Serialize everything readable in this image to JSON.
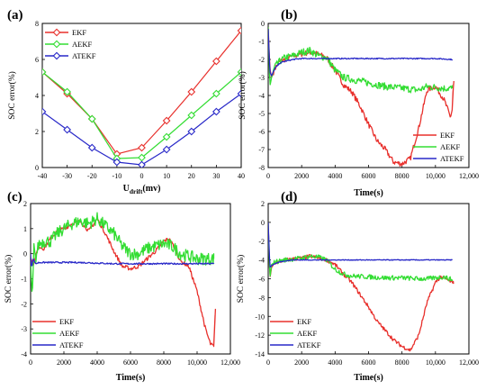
{
  "figure_labels": [
    "(a)",
    "(b)",
    "(c)",
    "(d)"
  ],
  "chart_data": [
    {
      "panel": "(a)",
      "type": "line",
      "xlabel_main": "U",
      "xlabel_sub": "drift",
      "xlabel_unit": "(mv)",
      "ylabel": "SOC error(%)",
      "xlim": [
        -40,
        40
      ],
      "ylim": [
        0,
        8
      ],
      "xticks": [
        -40,
        -30,
        -20,
        -10,
        0,
        10,
        20,
        30,
        40
      ],
      "xtick_labels": [
        "-40",
        "-30",
        "-20",
        "-10",
        "0",
        "10",
        "20",
        "30",
        "40"
      ],
      "yticks": [
        0,
        2,
        4,
        6,
        8
      ],
      "ytick_labels": [
        "0",
        "2",
        "4",
        "6",
        "8"
      ],
      "legend_position": "top-left",
      "x": [
        -40,
        -30,
        -20,
        -10,
        0,
        10,
        20,
        30,
        40
      ],
      "series": [
        {
          "name": "EKF",
          "color": "#e8302c",
          "marker": "diamond",
          "values": [
            5.3,
            4.1,
            2.7,
            0.75,
            1.1,
            2.6,
            4.2,
            5.9,
            7.6
          ]
        },
        {
          "name": "AEKF",
          "color": "#33dd33",
          "marker": "diamond",
          "values": [
            5.3,
            4.2,
            2.7,
            0.5,
            0.55,
            1.7,
            2.9,
            4.1,
            5.3
          ]
        },
        {
          "name": "ATEKF",
          "color": "#2828c8",
          "marker": "diamond",
          "values": [
            3.1,
            2.1,
            1.1,
            0.3,
            0.15,
            1.0,
            2.0,
            3.1,
            4.1
          ]
        }
      ]
    },
    {
      "panel": "(b)",
      "type": "line",
      "xlabel": "Time(s)",
      "ylabel": "SOC error(%)",
      "xlim": [
        0,
        12000
      ],
      "ylim": [
        -8,
        0
      ],
      "xticks": [
        0,
        2000,
        4000,
        6000,
        8000,
        10000,
        12000
      ],
      "xtick_labels": [
        "0",
        "2000",
        "4000",
        "6000",
        "8000",
        "10,000",
        "12,000"
      ],
      "yticks": [
        -8,
        -7,
        -6,
        -5,
        -4,
        -3,
        -2,
        -1,
        0
      ],
      "ytick_labels": [
        "-8",
        "-7",
        "-6",
        "-5",
        "-4",
        "-3",
        "-2",
        "-1",
        "0"
      ],
      "legend_position": "bottom-right",
      "series": [
        {
          "name": "EKF",
          "color": "#e8302c",
          "noise": 0.15,
          "x": [
            0,
            100,
            200,
            400,
            700,
            1000,
            1500,
            2000,
            2500,
            3000,
            3500,
            4000,
            4500,
            5000,
            5500,
            6000,
            6500,
            7000,
            7500,
            8000,
            8500,
            9000,
            9500,
            10000,
            10500,
            10900,
            11000,
            11050,
            11100
          ],
          "y": [
            -0.2,
            -2.5,
            -3.0,
            -2.5,
            -2.1,
            -2.0,
            -1.8,
            -1.7,
            -1.6,
            -1.7,
            -1.9,
            -2.6,
            -3.4,
            -3.8,
            -4.6,
            -5.6,
            -6.5,
            -7.0,
            -7.7,
            -7.8,
            -7.5,
            -5.8,
            -3.7,
            -3.5,
            -4.2,
            -5.2,
            -4.8,
            -3.8,
            -3.2
          ]
        },
        {
          "name": "AEKF",
          "color": "#33dd33",
          "noise": 0.2,
          "x": [
            0,
            100,
            200,
            400,
            700,
            1000,
            1500,
            2000,
            2500,
            3000,
            3500,
            4000,
            4500,
            5000,
            6000,
            7000,
            8000,
            9000,
            9500,
            10000,
            10500,
            11000
          ],
          "y": [
            -0.2,
            -3.5,
            -3.0,
            -2.4,
            -2.1,
            -1.9,
            -1.8,
            -1.6,
            -1.5,
            -1.8,
            -1.9,
            -2.6,
            -3.0,
            -3.1,
            -3.3,
            -3.5,
            -3.6,
            -3.7,
            -3.5,
            -3.55,
            -3.6,
            -3.6
          ]
        },
        {
          "name": "ATEKF",
          "color": "#2828c8",
          "noise": 0.03,
          "x": [
            0,
            100,
            200,
            400,
            700,
            1000,
            1500,
            2000,
            3000,
            4000,
            6000,
            8000,
            10000,
            11000
          ],
          "y": [
            -0.3,
            -2.7,
            -2.9,
            -2.5,
            -2.2,
            -2.1,
            -2.0,
            -1.95,
            -1.95,
            -1.95,
            -1.95,
            -1.95,
            -1.95,
            -2.0
          ]
        }
      ]
    },
    {
      "panel": "(c)",
      "type": "line",
      "xlabel": "Time(s)",
      "ylabel": "SOC error(%)",
      "xlim": [
        0,
        12000
      ],
      "ylim": [
        -4,
        2
      ],
      "xticks": [
        0,
        2000,
        4000,
        6000,
        8000,
        10000,
        12000
      ],
      "xtick_labels": [
        "0",
        "2000",
        "4000",
        "6000",
        "8000",
        "10,000",
        "12,000"
      ],
      "yticks": [
        -4,
        -3,
        -2,
        -1,
        0,
        1,
        2
      ],
      "ytick_labels": [
        "-4",
        "-3",
        "-2",
        "-1",
        "0",
        "1",
        "2"
      ],
      "legend_position": "bottom-left",
      "series": [
        {
          "name": "EKF",
          "color": "#e8302c",
          "noise": 0.08,
          "x": [
            0,
            50,
            150,
            300,
            500,
            800,
            1200,
            1600,
            2000,
            2500,
            3000,
            3500,
            4000,
            4500,
            5000,
            5500,
            6000,
            6500,
            7000,
            7500,
            8000,
            8300,
            8600,
            9000,
            9500,
            10000,
            10500,
            10800,
            11000,
            11050,
            11100
          ],
          "y": [
            -0.3,
            -0.2,
            -0.5,
            -0.1,
            0.3,
            0.2,
            0.6,
            0.9,
            1.0,
            1.2,
            1.3,
            0.9,
            1.4,
            0.8,
            0.1,
            -0.5,
            -0.6,
            -0.5,
            -0.2,
            0.1,
            0.5,
            0.6,
            0.3,
            -0.3,
            -0.5,
            -1.5,
            -3.0,
            -3.6,
            -3.7,
            -3.0,
            -2.2
          ]
        },
        {
          "name": "AEKF",
          "color": "#33dd33",
          "noise": 0.25,
          "x": [
            0,
            100,
            200,
            300,
            500,
            800,
            1200,
            1600,
            2000,
            2500,
            3000,
            3500,
            4000,
            4500,
            5000,
            5500,
            6000,
            6500,
            7000,
            7500,
            8000,
            8500,
            9000,
            9500,
            10000,
            10500,
            11000
          ],
          "y": [
            -0.3,
            -1.8,
            0.4,
            -0.2,
            0.4,
            0.5,
            0.5,
            0.8,
            1.0,
            1.2,
            1.3,
            1.2,
            1.4,
            1.1,
            0.8,
            0.3,
            0.0,
            0.0,
            0.2,
            0.3,
            0.4,
            0.3,
            0.0,
            -0.1,
            -0.2,
            -0.2,
            -0.2
          ]
        },
        {
          "name": "ATEKF",
          "color": "#2828c8",
          "noise": 0.03,
          "x": [
            0,
            50,
            150,
            300,
            500,
            800,
            1500,
            3000,
            5000,
            7000,
            9000,
            11000
          ],
          "y": [
            0.0,
            -0.6,
            -0.2,
            -0.4,
            -0.35,
            -0.35,
            -0.35,
            -0.35,
            -0.4,
            -0.4,
            -0.4,
            -0.4
          ]
        }
      ]
    },
    {
      "panel": "(d)",
      "type": "line",
      "xlabel": "Time(s)",
      "ylabel": "SOC error(%)",
      "xlim": [
        0,
        12000
      ],
      "ylim": [
        -14,
        2
      ],
      "xticks": [
        0,
        2000,
        4000,
        6000,
        8000,
        10000,
        12000
      ],
      "xtick_labels": [
        "0",
        "2000",
        "4000",
        "6000",
        "8000",
        "10,000",
        "12,000"
      ],
      "yticks": [
        -14,
        -12,
        -10,
        -8,
        -6,
        -4,
        -2,
        0,
        2
      ],
      "ytick_labels": [
        "-14",
        "-12",
        "-10",
        "-8",
        "-6",
        "-4",
        "-2",
        "0",
        "2"
      ],
      "legend_position": "bottom-left",
      "series": [
        {
          "name": "EKF",
          "color": "#e8302c",
          "noise": 0.2,
          "x": [
            0,
            100,
            200,
            400,
            700,
            1000,
            1500,
            2000,
            2500,
            3000,
            3500,
            4000,
            4500,
            5000,
            5500,
            6000,
            6500,
            7000,
            7500,
            8000,
            8500,
            9000,
            9500,
            10000,
            10300,
            10600,
            11000,
            11100
          ],
          "y": [
            0.0,
            -6.0,
            -4.8,
            -4.3,
            -4.2,
            -4.0,
            -3.9,
            -3.8,
            -3.6,
            -3.8,
            -4.0,
            -4.5,
            -5.5,
            -6.4,
            -7.7,
            -9.0,
            -10.5,
            -11.5,
            -12.5,
            -13.2,
            -13.6,
            -12.0,
            -8.5,
            -6.4,
            -5.8,
            -6.0,
            -6.4,
            -6.3
          ]
        },
        {
          "name": "AEKF",
          "color": "#33dd33",
          "noise": 0.25,
          "x": [
            0,
            100,
            200,
            400,
            700,
            1000,
            1500,
            2000,
            2500,
            3000,
            3500,
            4000,
            4500,
            5000,
            6000,
            7000,
            8000,
            9000,
            9500,
            10000,
            10500,
            11000
          ],
          "y": [
            0.0,
            -6.0,
            -4.5,
            -4.2,
            -4.1,
            -4.0,
            -3.9,
            -3.8,
            -3.6,
            -3.7,
            -4.0,
            -5.0,
            -5.5,
            -5.7,
            -5.8,
            -5.9,
            -5.9,
            -6.0,
            -6.0,
            -5.9,
            -5.8,
            -6.1
          ]
        },
        {
          "name": "ATEKF",
          "color": "#2828c8",
          "noise": 0.04,
          "x": [
            0,
            100,
            200,
            400,
            700,
            1000,
            1500,
            2000,
            3000,
            5000,
            8000,
            11000
          ],
          "y": [
            0.0,
            -4.8,
            -4.6,
            -4.4,
            -4.2,
            -4.1,
            -4.0,
            -4.0,
            -4.0,
            -4.0,
            -4.0,
            -4.0
          ]
        }
      ]
    }
  ]
}
